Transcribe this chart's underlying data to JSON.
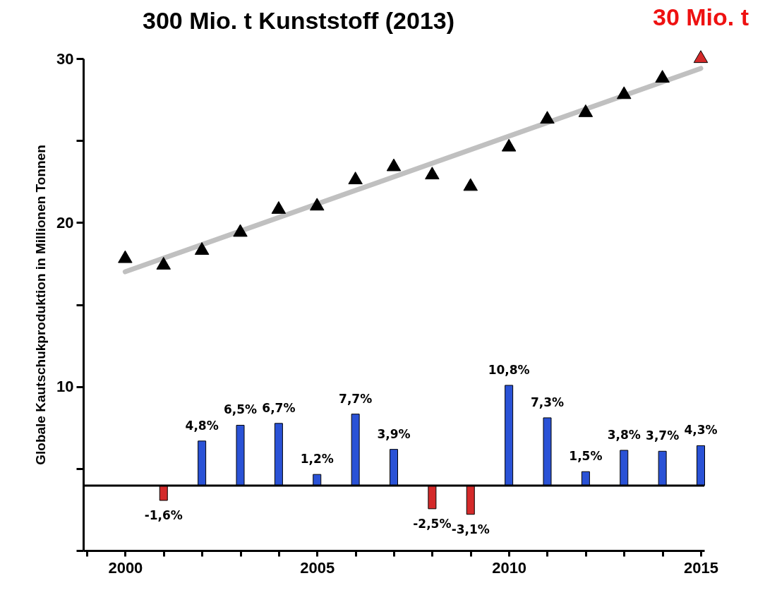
{
  "chart_data": {
    "type": "scatter",
    "title": "300 Mio. t Kunststoff (2013)",
    "ylabel": "Globale Kautschukproduktion in Millionen Tonnen",
    "xlim": [
      1999,
      2015
    ],
    "xticks": [
      {
        "value": 1999,
        "label": null
      },
      2000,
      {
        "value": 2001,
        "label": null
      },
      {
        "value": 2002,
        "label": null
      },
      {
        "value": 2003,
        "label": null
      },
      {
        "value": 2004,
        "label": null
      },
      2005,
      {
        "value": 2006,
        "label": null
      },
      {
        "value": 2007,
        "label": null
      },
      {
        "value": 2008,
        "label": null
      },
      {
        "value": 2009,
        "label": null
      },
      2010,
      {
        "value": 2011,
        "label": null
      },
      {
        "value": 2012,
        "label": null
      },
      {
        "value": 2013,
        "label": null
      },
      {
        "value": 2014,
        "label": null
      },
      2015
    ],
    "ylim": [
      0,
      30
    ],
    "yticks": [
      {
        "value": 0,
        "label": null
      },
      {
        "value": 5,
        "label": null
      },
      10,
      {
        "value": 15,
        "label": null
      },
      20,
      {
        "value": 25,
        "label": null
      },
      30
    ],
    "y2lim": [
      -7,
      46
    ],
    "grid": false,
    "series": [
      {
        "type": "line",
        "color": "#c0c0c0",
        "x": [
          2000,
          2015
        ],
        "values": [
          17.0,
          29.4
        ]
      },
      {
        "type": "bar",
        "axis": "y2",
        "x": [
          2001,
          2002,
          2003,
          2004,
          2005,
          2006,
          2007,
          2008,
          2009,
          2010,
          2011,
          2012,
          2013,
          2014,
          2015
        ],
        "values": [
          -1.6,
          4.8,
          6.5,
          6.7,
          1.2,
          7.7,
          3.9,
          -2.5,
          -3.1,
          10.8,
          7.3,
          1.5,
          3.8,
          3.7,
          4.3
        ],
        "value_labels": [
          "-1,6%",
          "4,8%",
          "6,5%",
          "6,7%",
          "1,2%",
          "7,7%",
          "3,9%",
          "-2,5%",
          "-3,1%",
          "10,8%",
          "7,3%",
          "1,5%",
          "3,8%",
          "3,7%",
          "4,3%"
        ],
        "colors": [
          "#d42a2a",
          "#2a52d6",
          "#2a52d6",
          "#2a52d6",
          "#2a52d6",
          "#2a52d6",
          "#2a52d6",
          "#d42a2a",
          "#d42a2a",
          "#2a52d6",
          "#2a52d6",
          "#2a52d6",
          "#2a52d6",
          "#2a52d6",
          "#2a52d6"
        ]
      },
      {
        "marker": "triangle",
        "x": [
          2000,
          2001,
          2002,
          2003,
          2004,
          2005,
          2006,
          2007,
          2008,
          2009,
          2010,
          2011,
          2012,
          2013,
          2014,
          2015
        ],
        "values": [
          17.8,
          17.4,
          18.3,
          19.4,
          20.8,
          21.0,
          22.6,
          23.4,
          22.9,
          22.2,
          24.6,
          26.3,
          26.7,
          27.8,
          28.8,
          30.0
        ],
        "colors": [
          "#000000",
          "#000000",
          "#000000",
          "#000000",
          "#000000",
          "#000000",
          "#000000",
          "#000000",
          "#000000",
          "#000000",
          "#000000",
          "#000000",
          "#000000",
          "#000000",
          "#000000",
          "#d42a2a"
        ]
      }
    ],
    "ref_lines": [
      {
        "axis": "y2",
        "value": 0,
        "color": "#000000"
      }
    ],
    "annotations": [
      {
        "text": "30 Mio. t",
        "x": 2015,
        "y": 30
      }
    ]
  }
}
